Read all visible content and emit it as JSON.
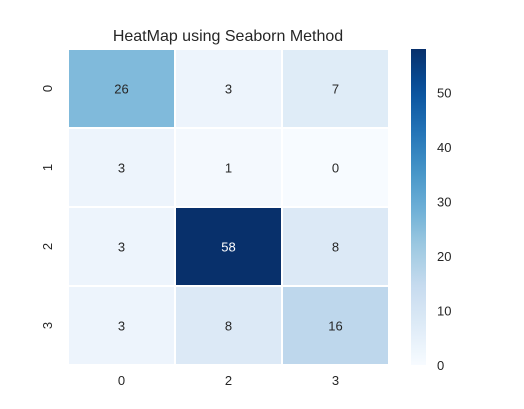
{
  "chart_data": {
    "type": "heatmap",
    "title": "HeatMap using Seaborn Method",
    "xlabel": "",
    "ylabel": "",
    "x_categories": [
      "0",
      "2",
      "3"
    ],
    "y_categories": [
      "0",
      "1",
      "2",
      "3"
    ],
    "values": [
      [
        26,
        3,
        7
      ],
      [
        3,
        1,
        0
      ],
      [
        3,
        58,
        8
      ],
      [
        3,
        8,
        16
      ]
    ],
    "colormap": "Blues",
    "vmin": 0,
    "vmax": 58,
    "colorbar_ticks": [
      0,
      10,
      20,
      30,
      40,
      50
    ],
    "colors": {
      "low": "#f7fbff",
      "high": "#08306b",
      "cell_border": "#ffffff",
      "light_text": "#ffffff",
      "dark_text": "#262626"
    }
  }
}
